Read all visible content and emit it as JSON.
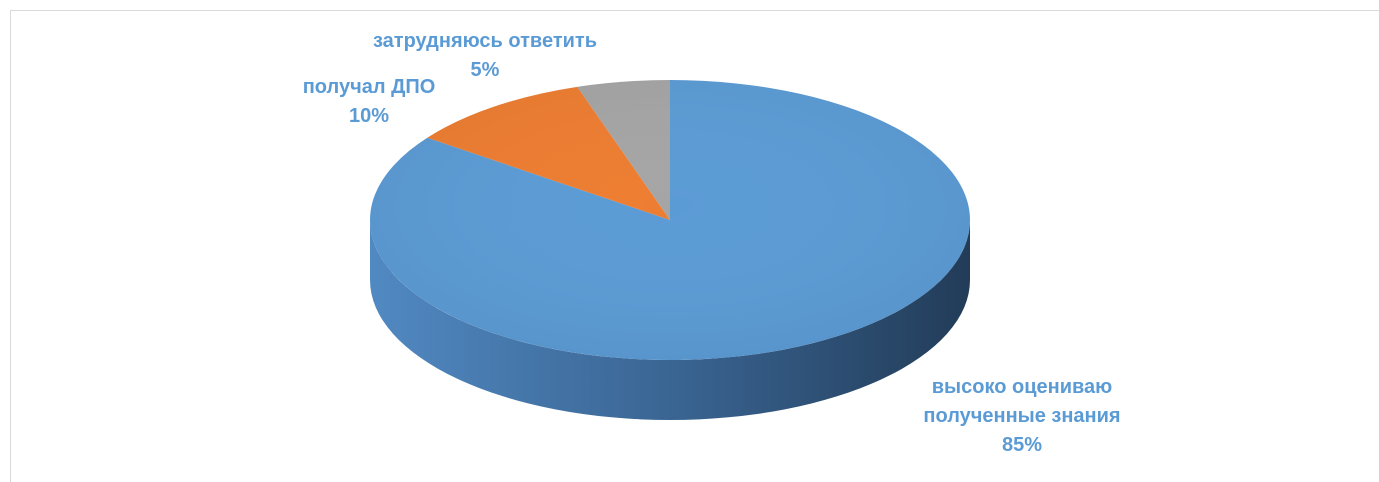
{
  "chart_data": {
    "type": "pie",
    "categories": [
      "высоко оцениваю полученные знания",
      "получал ДПО",
      "затрудняюсь ответить"
    ],
    "values": [
      85,
      10,
      5
    ],
    "value_labels": [
      "85%",
      "10%",
      "5%"
    ],
    "label_lines": [
      [
        "высоко оцениваю",
        "полученные знания",
        "85%"
      ],
      [
        "получал ДПО",
        "10%"
      ],
      [
        "затрудняюсь ответить",
        "5%"
      ]
    ],
    "colors": [
      "#5b9bd5",
      "#ed7d31",
      "#a5a5a5"
    ],
    "style": "3d",
    "title": "",
    "legend": "none"
  }
}
